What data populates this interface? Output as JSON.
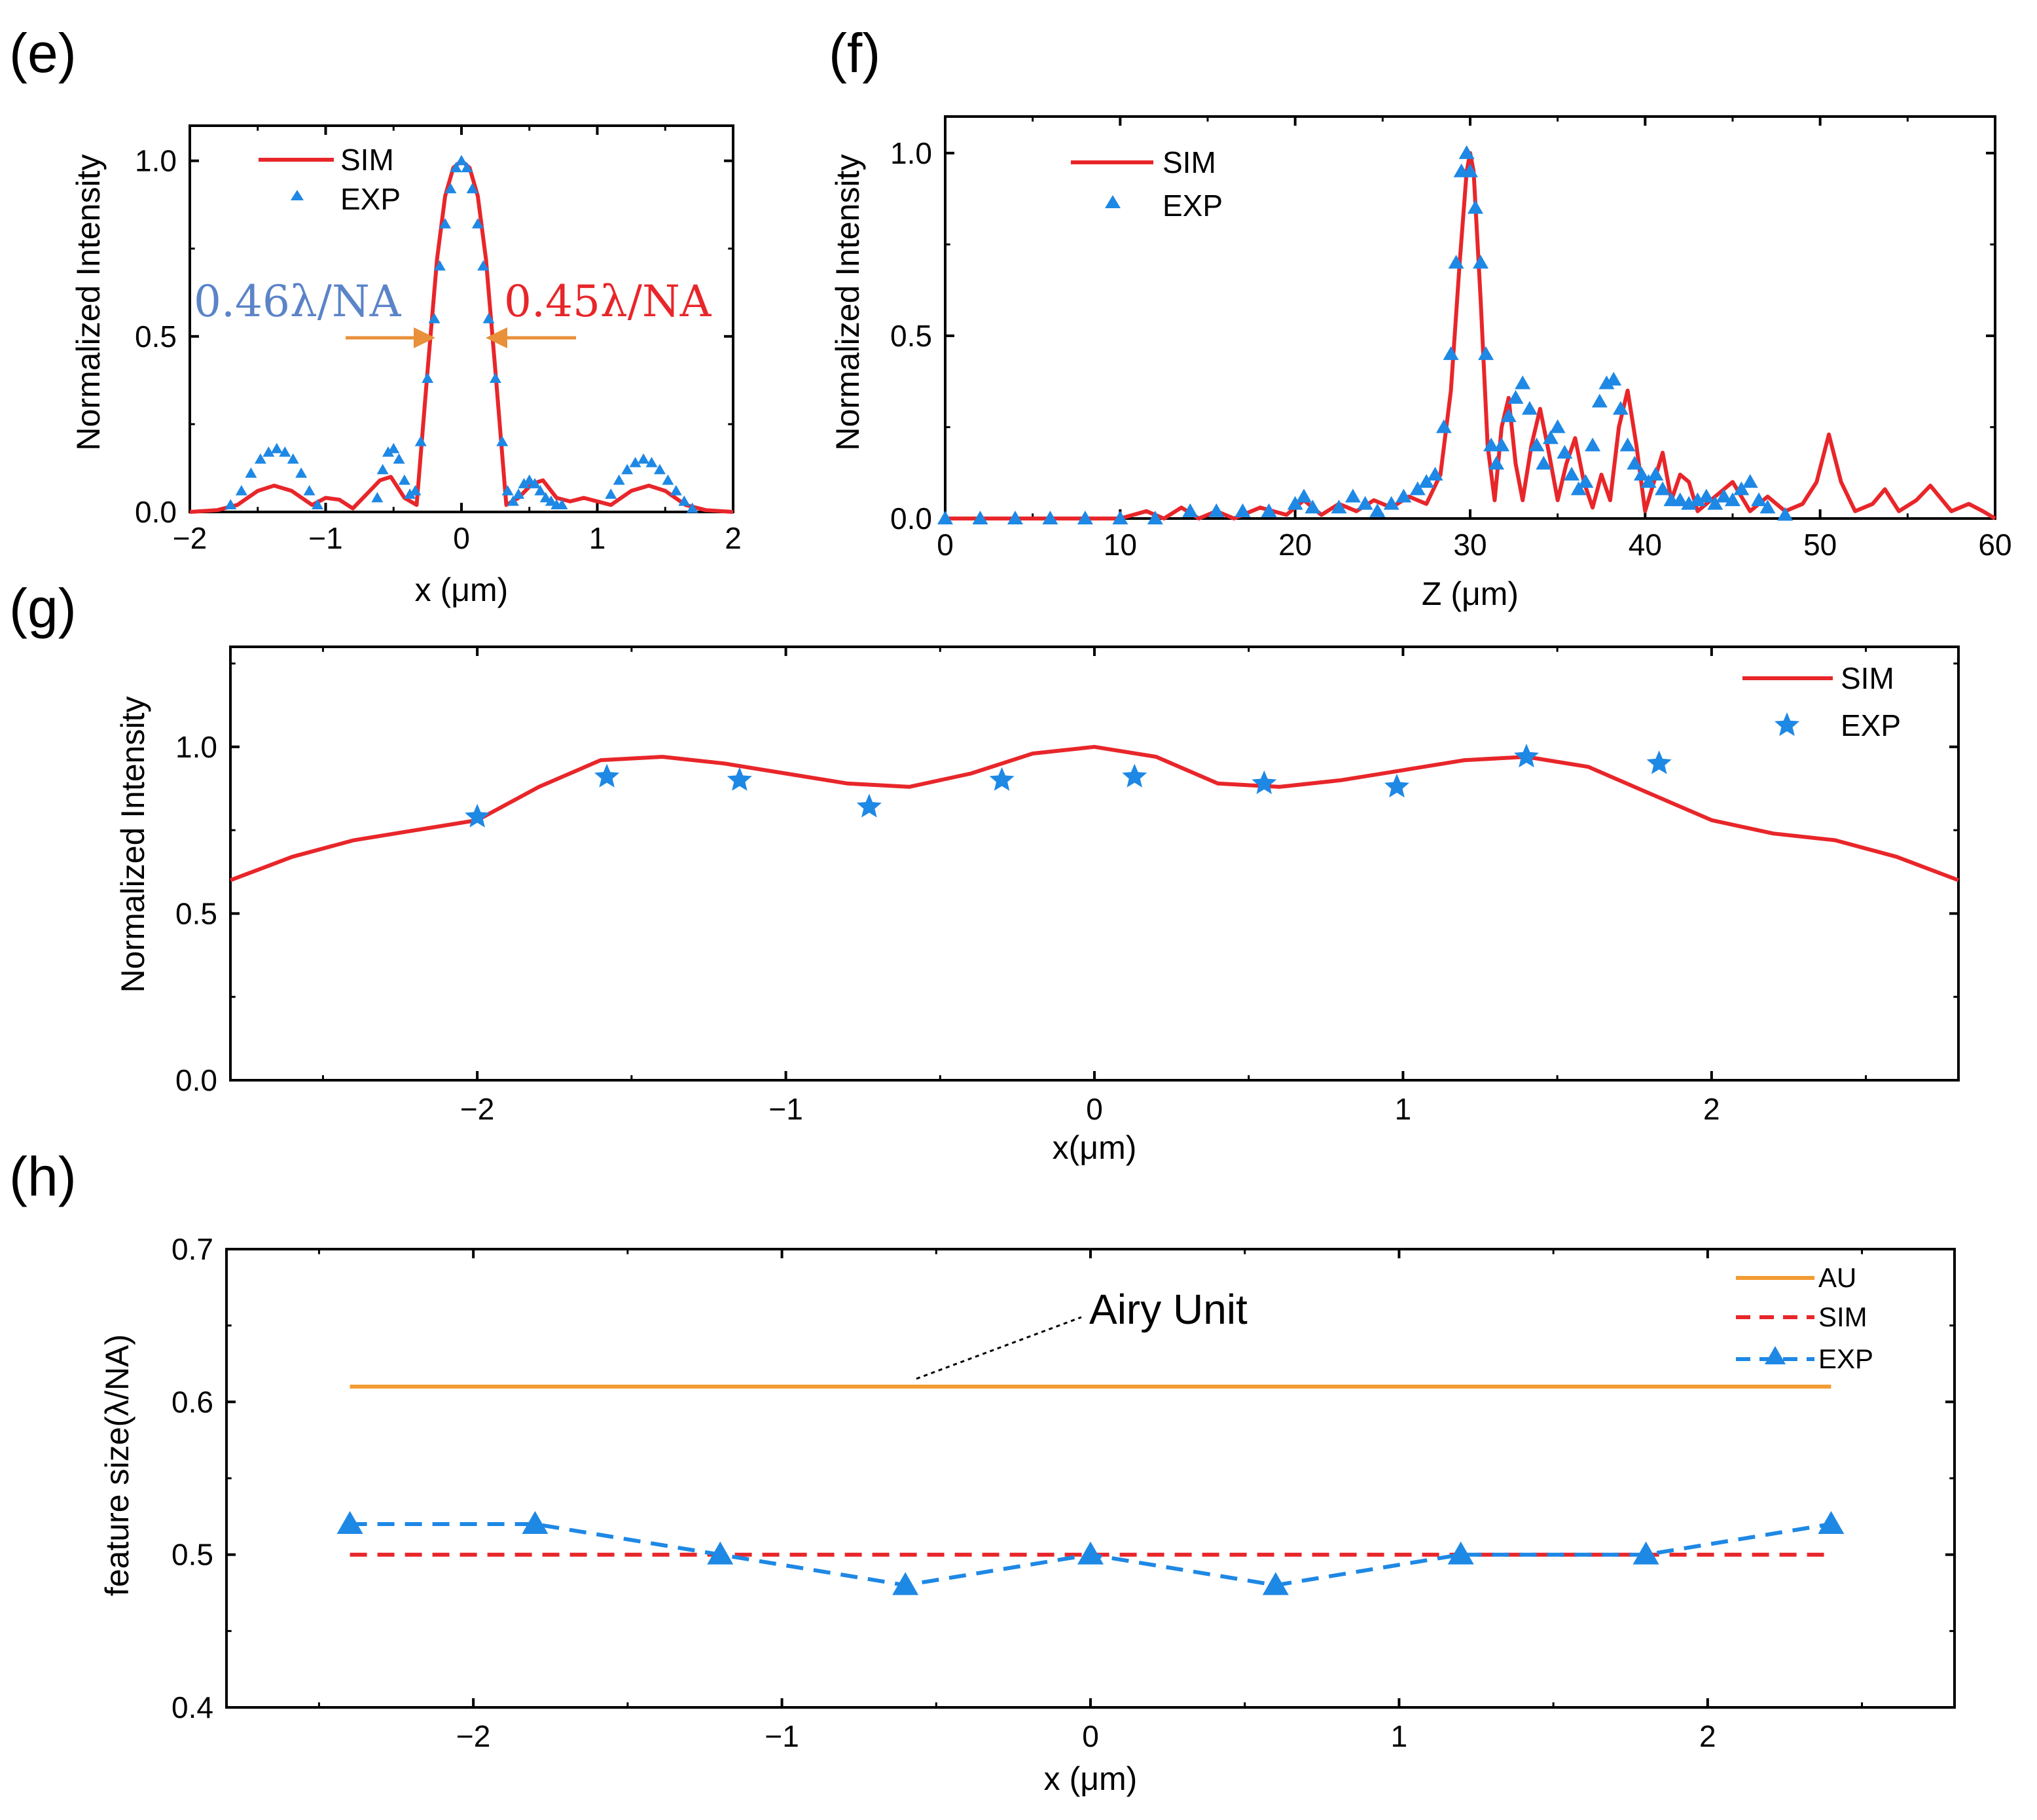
{
  "colors": {
    "sim": "#e8262a",
    "exp": "#1e88e5",
    "au": "#f39c32",
    "annot_blue": "#5b84c8",
    "annot_red": "#e8262a",
    "arrow": "#e8903a",
    "axis": "#000000"
  },
  "chart_data": [
    {
      "id": "e",
      "panel_label": "(e)",
      "type": "line",
      "xlabel": "x (μm)",
      "ylabel": "Normalized Intensity",
      "xlim": [
        -2,
        2
      ],
      "ylim": [
        0,
        1.1
      ],
      "xticks": [
        -2,
        -1,
        0,
        1,
        2
      ],
      "xtick_labels": [
        "−2",
        "−1",
        "0",
        "1",
        "2"
      ],
      "yticks": [
        0,
        0.5,
        1.0
      ],
      "ytick_labels": [
        "0.0",
        "0.5",
        "1.0"
      ],
      "legend": [
        "SIM",
        "EXP"
      ],
      "annotations": [
        {
          "text": "0.46λ/NA",
          "color": "blue"
        },
        {
          "text": "0.45λ/NA",
          "color": "red"
        }
      ],
      "series": [
        {
          "name": "SIM",
          "style": "line",
          "x": [
            -2,
            -1.8,
            -1.65,
            -1.5,
            -1.38,
            -1.25,
            -1.1,
            -1.0,
            -0.9,
            -0.8,
            -0.7,
            -0.6,
            -0.52,
            -0.42,
            -0.33,
            -0.25,
            -0.18,
            -0.12,
            -0.06,
            0,
            0.06,
            0.12,
            0.18,
            0.25,
            0.33,
            0.42,
            0.52,
            0.6,
            0.7,
            0.8,
            0.9,
            1.0,
            1.1,
            1.25,
            1.38,
            1.5,
            1.65,
            1.8,
            2
          ],
          "y": [
            0,
            0.005,
            0.02,
            0.06,
            0.075,
            0.06,
            0.02,
            0.04,
            0.035,
            0.01,
            0.05,
            0.09,
            0.1,
            0.04,
            0.02,
            0.4,
            0.72,
            0.9,
            0.98,
            1.0,
            0.98,
            0.9,
            0.72,
            0.4,
            0.02,
            0.04,
            0.08,
            0.09,
            0.04,
            0.03,
            0.04,
            0.03,
            0.02,
            0.06,
            0.075,
            0.06,
            0.02,
            0.005,
            0
          ]
        },
        {
          "name": "EXP",
          "style": "markers",
          "marker": "triangle",
          "x": [
            -1.7,
            -1.62,
            -1.55,
            -1.48,
            -1.42,
            -1.36,
            -1.3,
            -1.24,
            -1.18,
            -1.12,
            -1.06,
            -0.62,
            -0.58,
            -0.54,
            -0.5,
            -0.46,
            -0.42,
            -0.38,
            -0.34,
            -0.3,
            -0.25,
            -0.2,
            -0.16,
            -0.12,
            -0.08,
            -0.04,
            0,
            0.04,
            0.08,
            0.12,
            0.16,
            0.2,
            0.25,
            0.3,
            0.34,
            0.38,
            0.42,
            0.46,
            0.5,
            0.54,
            0.58,
            0.62,
            0.66,
            0.7,
            0.74,
            1.1,
            1.16,
            1.22,
            1.28,
            1.34,
            1.4,
            1.46,
            1.52,
            1.58,
            1.64,
            1.7
          ],
          "y": [
            0.02,
            0.06,
            0.11,
            0.15,
            0.17,
            0.18,
            0.17,
            0.15,
            0.11,
            0.06,
            0.02,
            0.04,
            0.12,
            0.17,
            0.18,
            0.15,
            0.09,
            0.05,
            0.06,
            0.2,
            0.38,
            0.55,
            0.7,
            0.82,
            0.92,
            0.98,
            1.0,
            0.98,
            0.92,
            0.82,
            0.7,
            0.55,
            0.38,
            0.2,
            0.06,
            0.03,
            0.05,
            0.08,
            0.09,
            0.08,
            0.06,
            0.04,
            0.03,
            0.02,
            0.02,
            0.05,
            0.09,
            0.12,
            0.14,
            0.15,
            0.14,
            0.12,
            0.09,
            0.06,
            0.03,
            0.01
          ]
        }
      ]
    },
    {
      "id": "f",
      "panel_label": "(f)",
      "type": "line",
      "xlabel": "Z (μm)",
      "ylabel": "Normalized Intensity",
      "xlim": [
        0,
        60
      ],
      "ylim": [
        0,
        1.1
      ],
      "xticks": [
        0,
        10,
        20,
        30,
        40,
        50,
        60
      ],
      "xtick_labels": [
        "0",
        "10",
        "20",
        "30",
        "40",
        "50",
        "60"
      ],
      "yticks": [
        0,
        0.5,
        1.0
      ],
      "ytick_labels": [
        "0.0",
        "0.5",
        "1.0"
      ],
      "legend": [
        "SIM",
        "EXP"
      ],
      "series": [
        {
          "name": "SIM",
          "style": "line",
          "x": [
            0,
            10,
            11.5,
            12.5,
            13.5,
            14.5,
            15.5,
            16.5,
            18,
            19.5,
            20.5,
            21.5,
            22.5,
            23.5,
            24.5,
            25.5,
            26.5,
            27.5,
            28.3,
            28.9,
            29.4,
            29.8,
            30.0,
            30.2,
            30.6,
            31.0,
            31.4,
            31.8,
            32.2,
            32.6,
            33.0,
            33.5,
            34.0,
            34.5,
            35.0,
            35.5,
            36.0,
            36.5,
            37.0,
            37.5,
            38.0,
            38.5,
            39.0,
            39.5,
            40.0,
            40.5,
            41.0,
            41.5,
            42.0,
            42.5,
            43.0,
            44.0,
            45.0,
            46.0,
            47.0,
            48.0,
            49.0,
            49.8,
            50.5,
            51.2,
            52.0,
            53.0,
            53.7,
            54.5,
            55.5,
            56.3,
            57.5,
            58.5,
            59.3,
            60
          ],
          "y": [
            0,
            0,
            0.02,
            0.0,
            0.03,
            0.0,
            0.02,
            0.0,
            0.03,
            0.01,
            0.05,
            0.01,
            0.04,
            0.02,
            0.05,
            0.03,
            0.06,
            0.04,
            0.12,
            0.35,
            0.7,
            0.95,
            1.0,
            0.95,
            0.6,
            0.2,
            0.05,
            0.25,
            0.33,
            0.15,
            0.05,
            0.2,
            0.3,
            0.18,
            0.05,
            0.15,
            0.22,
            0.1,
            0.03,
            0.12,
            0.05,
            0.25,
            0.35,
            0.2,
            0.02,
            0.1,
            0.18,
            0.05,
            0.12,
            0.1,
            0.02,
            0.06,
            0.1,
            0.02,
            0.06,
            0.02,
            0.04,
            0.1,
            0.23,
            0.1,
            0.02,
            0.04,
            0.08,
            0.02,
            0.05,
            0.09,
            0.02,
            0.04,
            0.02,
            0.0
          ]
        },
        {
          "name": "EXP",
          "style": "markers",
          "marker": "triangle",
          "x": [
            0,
            2,
            4,
            6,
            8,
            10,
            12,
            14,
            15.5,
            17,
            18.5,
            20,
            20.5,
            21,
            22.5,
            23.3,
            24,
            24.7,
            25.5,
            26.2,
            27,
            27.5,
            28,
            28.5,
            28.9,
            29.2,
            29.5,
            29.8,
            30.0,
            30.3,
            30.6,
            30.9,
            31.2,
            31.5,
            31.8,
            32.2,
            32.6,
            33.0,
            33.4,
            33.8,
            34.2,
            34.6,
            35.0,
            35.4,
            35.8,
            36.2,
            36.6,
            37.0,
            37.4,
            37.8,
            38.2,
            38.6,
            39.0,
            39.4,
            39.8,
            40.2,
            40.6,
            41.0,
            41.5,
            42.0,
            42.5,
            43.0,
            43.5,
            44.0,
            44.5,
            45.0,
            45.5,
            46.0,
            46.5,
            47.0,
            48.0
          ],
          "y": [
            0,
            0,
            0,
            0,
            0,
            0,
            0.0,
            0.02,
            0.02,
            0.02,
            0.02,
            0.04,
            0.06,
            0.03,
            0.03,
            0.06,
            0.04,
            0.02,
            0.04,
            0.06,
            0.08,
            0.1,
            0.12,
            0.25,
            0.45,
            0.7,
            0.95,
            1.0,
            0.95,
            0.85,
            0.7,
            0.45,
            0.2,
            0.15,
            0.2,
            0.28,
            0.33,
            0.37,
            0.3,
            0.2,
            0.15,
            0.22,
            0.25,
            0.18,
            0.12,
            0.08,
            0.1,
            0.2,
            0.32,
            0.37,
            0.38,
            0.3,
            0.2,
            0.15,
            0.12,
            0.1,
            0.12,
            0.08,
            0.05,
            0.05,
            0.04,
            0.05,
            0.06,
            0.04,
            0.06,
            0.05,
            0.08,
            0.1,
            0.05,
            0.03,
            0.01
          ]
        }
      ]
    },
    {
      "id": "g",
      "panel_label": "(g)",
      "type": "line",
      "xlabel": "x(μm)",
      "ylabel": "Normalized Intensity",
      "xlim": [
        -2.8,
        2.8
      ],
      "ylim": [
        0,
        1.3
      ],
      "xticks": [
        -2,
        -1,
        0,
        1,
        2
      ],
      "xtick_labels": [
        "−2",
        "−1",
        "0",
        "1",
        "2"
      ],
      "yticks": [
        0,
        0.5,
        1.0
      ],
      "ytick_labels": [
        "0.0",
        "0.5",
        "1.0"
      ],
      "legend": [
        "SIM",
        "EXP"
      ],
      "series": [
        {
          "name": "SIM",
          "style": "line",
          "x": [
            -2.8,
            -2.6,
            -2.4,
            -2.2,
            -2.0,
            -1.8,
            -1.6,
            -1.4,
            -1.2,
            -1.0,
            -0.8,
            -0.6,
            -0.4,
            -0.2,
            0,
            0.2,
            0.4,
            0.6,
            0.8,
            1.0,
            1.2,
            1.4,
            1.6,
            1.8,
            2.0,
            2.2,
            2.4,
            2.6,
            2.8
          ],
          "y": [
            0.6,
            0.67,
            0.72,
            0.75,
            0.78,
            0.88,
            0.96,
            0.97,
            0.95,
            0.92,
            0.89,
            0.88,
            0.92,
            0.98,
            1.0,
            0.97,
            0.89,
            0.88,
            0.9,
            0.93,
            0.96,
            0.97,
            0.94,
            0.86,
            0.78,
            0.74,
            0.72,
            0.67,
            0.6
          ]
        },
        {
          "name": "EXP",
          "style": "markers",
          "marker": "star",
          "x": [
            -2.0,
            -1.58,
            -1.15,
            -0.73,
            -0.3,
            0.13,
            0.55,
            0.98,
            1.4,
            1.83
          ],
          "y": [
            0.79,
            0.91,
            0.9,
            0.82,
            0.9,
            0.91,
            0.89,
            0.88,
            0.97,
            0.95
          ]
        }
      ]
    },
    {
      "id": "h",
      "panel_label": "(h)",
      "type": "line",
      "xlabel": "x (μm)",
      "ylabel": "feature size(λ/NA)",
      "xlim": [
        -2.8,
        2.8
      ],
      "ylim": [
        0.4,
        0.7
      ],
      "xticks": [
        -2,
        -1,
        0,
        1,
        2
      ],
      "xtick_labels": [
        "−2",
        "−1",
        "0",
        "1",
        "2"
      ],
      "yticks": [
        0.4,
        0.5,
        0.6,
        0.7
      ],
      "ytick_labels": [
        "0.4",
        "0.5",
        "0.6",
        "0.7"
      ],
      "legend": [
        "AU",
        "SIM",
        "EXP"
      ],
      "annotations": [
        {
          "text": "Airy Unit"
        }
      ],
      "series": [
        {
          "name": "AU",
          "style": "line",
          "x": [
            -2.4,
            2.4
          ],
          "y": [
            0.61,
            0.61
          ]
        },
        {
          "name": "SIM",
          "style": "dashed",
          "x": [
            -2.4,
            2.4
          ],
          "y": [
            0.5,
            0.5
          ]
        },
        {
          "name": "EXP",
          "style": "dashed-markers",
          "marker": "triangle",
          "x": [
            -2.4,
            -1.8,
            -1.2,
            -0.6,
            0,
            0.6,
            1.2,
            1.8,
            2.4
          ],
          "y": [
            0.52,
            0.52,
            0.5,
            0.48,
            0.5,
            0.48,
            0.5,
            0.5,
            0.52
          ]
        }
      ]
    }
  ]
}
